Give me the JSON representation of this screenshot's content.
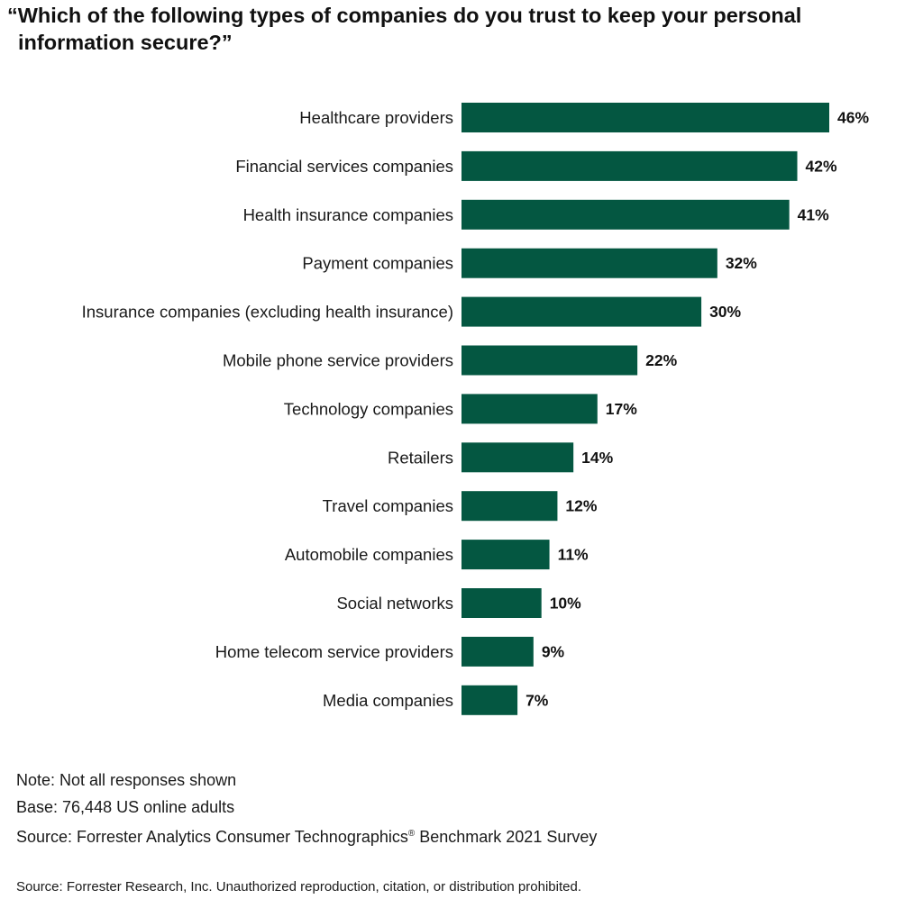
{
  "title_line1": "“Which of the following types of companies do you trust to keep your personal",
  "title_line2": "information secure?”",
  "chart_data": {
    "type": "bar",
    "orientation": "horizontal",
    "categories": [
      "Healthcare providers",
      "Financial services companies",
      "Health insurance companies",
      "Payment companies",
      "Insurance companies (excluding health insurance)",
      "Mobile phone service providers",
      "Technology companies",
      "Retailers",
      "Travel companies",
      "Automobile companies",
      "Social networks",
      "Home telecom service providers",
      "Media companies"
    ],
    "values": [
      46,
      42,
      41,
      32,
      30,
      22,
      17,
      14,
      12,
      11,
      10,
      9,
      7
    ],
    "value_labels": [
      "46%",
      "42%",
      "41%",
      "32%",
      "30%",
      "22%",
      "17%",
      "14%",
      "12%",
      "11%",
      "10%",
      "9%",
      "7%"
    ],
    "unit": "%",
    "bar_color": "#045741",
    "xlim": [
      0,
      46
    ],
    "grid": false,
    "legend": "none"
  },
  "notes": {
    "note": "Note: Not all responses shown",
    "base": "Base: 76,448 US online adults",
    "source_prefix": "Source: Forrester Analytics Consumer Technographics",
    "source_mark": "®",
    "source_suffix": " Benchmark 2021 Survey"
  },
  "footer": "Source: Forrester Research, Inc. Unauthorized reproduction, citation, or distribution prohibited."
}
